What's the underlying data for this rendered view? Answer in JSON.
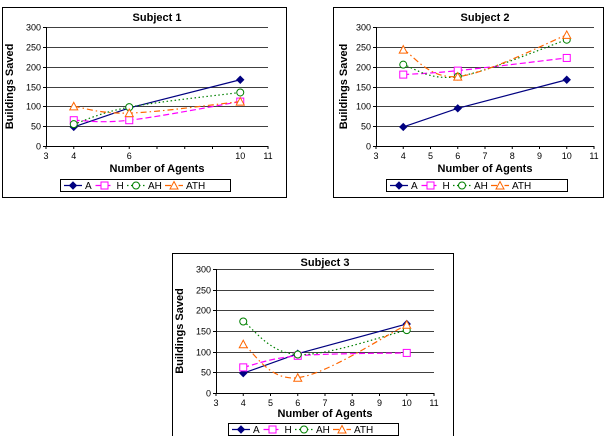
{
  "chart_data": [
    {
      "type": "line",
      "title": "Subject 1",
      "xlabel": "Number of Agents",
      "ylabel": "Buildings Saved",
      "xlim": [
        3,
        11
      ],
      "ylim": [
        0,
        300
      ],
      "xticks": [
        3,
        4,
        5,
        6,
        7,
        8,
        9,
        10,
        11
      ],
      "xtick_labels": [
        "3",
        "4",
        "",
        "6",
        "",
        "",
        "",
        "10",
        "11"
      ],
      "yticks": [
        0,
        50,
        100,
        150,
        200,
        250,
        300
      ],
      "grid": true,
      "legend_position": "bottom",
      "x": [
        4,
        6,
        10
      ],
      "series": [
        {
          "name": "A",
          "values": [
            48,
            96,
            167
          ],
          "color": "#000080",
          "marker": "diamond",
          "dash": "solid"
        },
        {
          "name": "H",
          "values": [
            65,
            65,
            112
          ],
          "color": "#ff00ff",
          "marker": "square",
          "dash": "dashed"
        },
        {
          "name": "AH",
          "values": [
            55,
            98,
            135
          ],
          "color": "#008000",
          "marker": "circle",
          "dash": "dotted"
        },
        {
          "name": "ATH",
          "values": [
            100,
            83,
            112
          ],
          "color": "#ff6600",
          "marker": "triangle",
          "dash": "dashdot"
        }
      ]
    },
    {
      "type": "line",
      "title": "Subject 2",
      "xlabel": "Number of Agents",
      "ylabel": "Buildings Saved",
      "xlim": [
        3,
        11
      ],
      "ylim": [
        0,
        300
      ],
      "xticks": [
        3,
        4,
        5,
        6,
        7,
        8,
        9,
        10,
        11
      ],
      "xtick_labels": [
        "3",
        "4",
        "5",
        "6",
        "7",
        "8",
        "9",
        "10",
        "11"
      ],
      "yticks": [
        0,
        50,
        100,
        150,
        200,
        250,
        300
      ],
      "grid": true,
      "legend_position": "bottom",
      "x": [
        4,
        6,
        10
      ],
      "series": [
        {
          "name": "A",
          "values": [
            48,
            95,
            167
          ],
          "color": "#000080",
          "marker": "diamond",
          "dash": "solid"
        },
        {
          "name": "H",
          "values": [
            180,
            190,
            222
          ],
          "color": "#ff00ff",
          "marker": "square",
          "dash": "dashed"
        },
        {
          "name": "AH",
          "values": [
            205,
            175,
            268
          ],
          "color": "#008000",
          "marker": "circle",
          "dash": "dotted"
        },
        {
          "name": "ATH",
          "values": [
            243,
            175,
            280
          ],
          "color": "#ff6600",
          "marker": "triangle",
          "dash": "dashdot"
        }
      ]
    },
    {
      "type": "line",
      "title": "Subject 3",
      "xlabel": "Number of Agents",
      "ylabel": "Buildings Saved",
      "xlim": [
        3,
        11
      ],
      "ylim": [
        0,
        300
      ],
      "xticks": [
        3,
        4,
        5,
        6,
        7,
        8,
        9,
        10,
        11
      ],
      "xtick_labels": [
        "3",
        "4",
        "5",
        "6",
        "7",
        "8",
        "9",
        "10",
        "11"
      ],
      "yticks": [
        0,
        50,
        100,
        150,
        200,
        250,
        300
      ],
      "grid": true,
      "legend_position": "bottom",
      "x": [
        4,
        6,
        10
      ],
      "series": [
        {
          "name": "A",
          "values": [
            48,
            95,
            167
          ],
          "color": "#000080",
          "marker": "diamond",
          "dash": "solid"
        },
        {
          "name": "H",
          "values": [
            62,
            90,
            97
          ],
          "color": "#ff00ff",
          "marker": "square",
          "dash": "dashed"
        },
        {
          "name": "AH",
          "values": [
            173,
            93,
            152
          ],
          "color": "#008000",
          "marker": "circle",
          "dash": "dotted"
        },
        {
          "name": "ATH",
          "values": [
            118,
            37,
            165
          ],
          "color": "#ff6600",
          "marker": "triangle",
          "dash": "dashdot"
        }
      ]
    }
  ]
}
